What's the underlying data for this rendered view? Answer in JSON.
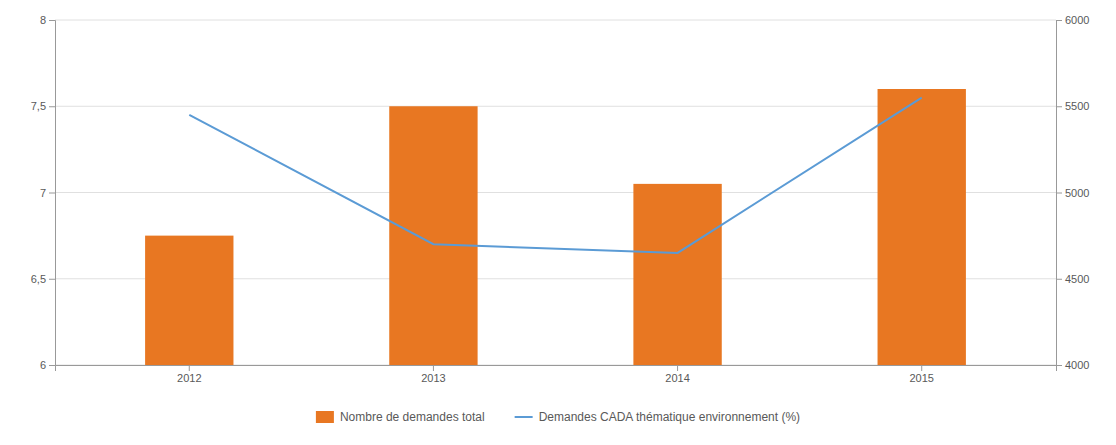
{
  "chart_data": {
    "type": "bar",
    "categories": [
      "2012",
      "2013",
      "2014",
      "2015"
    ],
    "series": [
      {
        "name": "Nombre de demandes total",
        "type": "bar",
        "color": "#E87722",
        "values": [
          6.75,
          7.5,
          7.05,
          7.6
        ]
      },
      {
        "name": "Demandes CADA thématique environnement (%)",
        "type": "line",
        "color": "#5B9BD5",
        "axis": "y2",
        "values": [
          5450,
          4700,
          4650,
          5550
        ]
      }
    ],
    "ylim": [
      6,
      8
    ],
    "yticks": [
      6,
      {
        "value": 6.5,
        "label": "6,5"
      },
      7,
      {
        "value": 7.5,
        "label": "7,5"
      },
      8
    ],
    "y2lim": [
      4000,
      6000
    ],
    "y2ticks": [
      4000,
      4500,
      5000,
      5500,
      6000
    ],
    "grid": true,
    "legend": "bottom"
  }
}
